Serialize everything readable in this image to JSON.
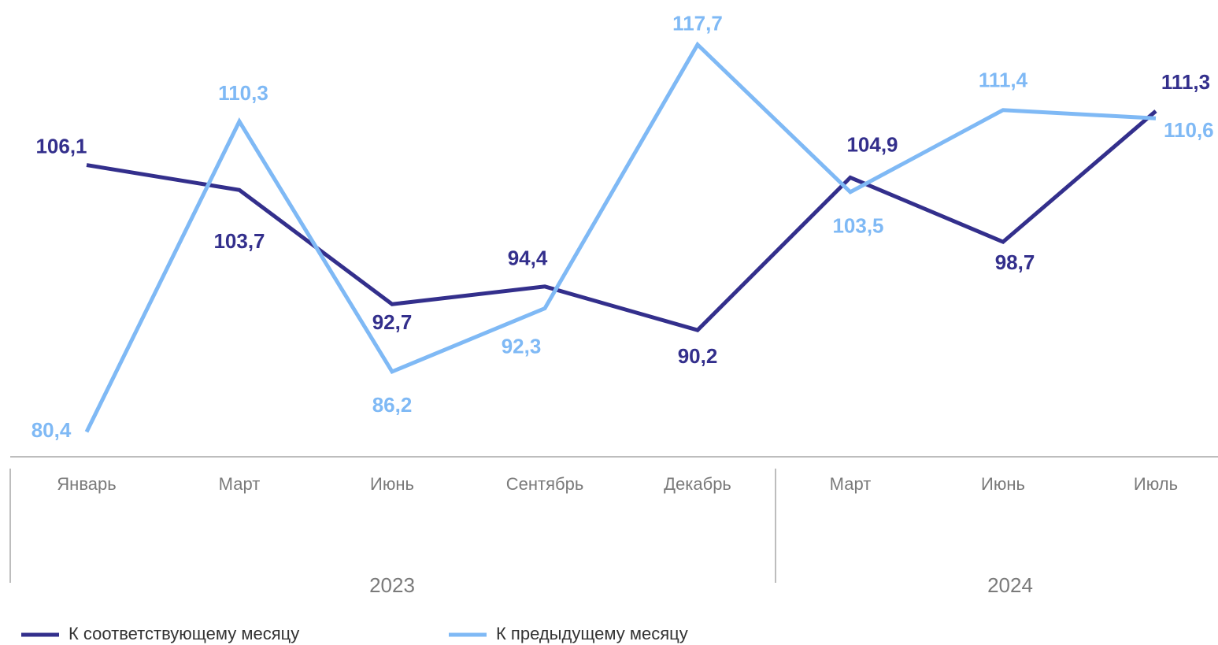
{
  "chart_data": {
    "type": "line",
    "categories": [
      "Январь",
      "Март",
      "Июнь",
      "Сентябрь",
      "Декабрь",
      "Март",
      "Июнь",
      "Июль"
    ],
    "years": [
      "2023",
      "2023",
      "2023",
      "2023",
      "2023",
      "2024",
      "2024",
      "2024"
    ],
    "ylim": [
      78,
      122
    ],
    "series": [
      {
        "name": "К соответствующему месяцу",
        "color": "#332f8c",
        "values": [
          106.1,
          103.7,
          92.7,
          94.4,
          90.2,
          104.9,
          98.7,
          111.3
        ],
        "value_labels": [
          "106,1",
          "103,7",
          "92,7",
          "94,4",
          "90,2",
          "104,9",
          "98,7",
          "111,3"
        ]
      },
      {
        "name": "К предыдущему месяцу",
        "color": "#7fb9f5",
        "values": [
          80.4,
          110.3,
          86.2,
          92.3,
          117.7,
          103.5,
          111.4,
          110.6
        ],
        "value_labels": [
          "80,4",
          "110,3",
          "86,2",
          "92,3",
          "117,7",
          "103,5",
          "111,4",
          "110,6"
        ]
      }
    ]
  }
}
